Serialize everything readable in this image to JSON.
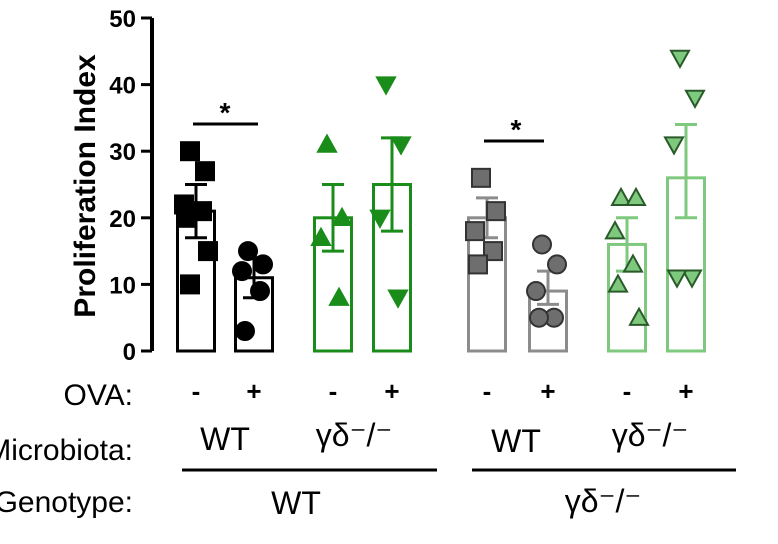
{
  "chart_data": {
    "type": "bar",
    "ylabel": "Proliferation Index",
    "ylim": [
      0,
      50
    ],
    "yticks": [
      "0",
      "10",
      "20",
      "30",
      "40",
      "50"
    ],
    "row_labels": {
      "ova": "OVA:",
      "microbiota": "Microbiota:",
      "genotype": "Genotype:"
    },
    "ova_values": [
      "-",
      "+",
      "-",
      "+",
      "-",
      "+",
      "-",
      "+"
    ],
    "microbiota_values": [
      "WT",
      "γδ⁻/⁻",
      "WT",
      "γδ⁻/⁻"
    ],
    "genotype_values": [
      "WT",
      "γδ⁻/⁻"
    ],
    "significance": [
      "*",
      "*"
    ],
    "bars": [
      {
        "mean": 21,
        "sem_low": 17,
        "sem_high": 25,
        "points": [
          30,
          27,
          22,
          21,
          20,
          15,
          10
        ],
        "marker": "square",
        "color": "#000000",
        "fill": "#000000"
      },
      {
        "mean": 11,
        "sem_low": 8,
        "sem_high": 14,
        "points": [
          15,
          13,
          12,
          9,
          3
        ],
        "marker": "circle",
        "color": "#000000",
        "fill": "#000000"
      },
      {
        "mean": 20,
        "sem_low": 15,
        "sem_high": 25,
        "points": [
          31,
          20,
          17,
          8
        ],
        "marker": "triangle-up",
        "color": "#1a8c1a",
        "fill": "#1a8c1a"
      },
      {
        "mean": 25,
        "sem_low": 18,
        "sem_high": 32,
        "points": [
          40,
          31,
          20,
          8
        ],
        "marker": "triangle-down",
        "color": "#1a8c1a",
        "fill": "#1a8c1a"
      },
      {
        "mean": 20,
        "sem_low": 17,
        "sem_high": 23,
        "points": [
          26,
          21,
          18,
          15,
          13
        ],
        "marker": "square",
        "color": "#8c8c8c",
        "fill": "#6e6e6e"
      },
      {
        "mean": 9,
        "sem_low": 7,
        "sem_high": 12,
        "points": [
          16,
          13,
          9,
          5,
          5
        ],
        "marker": "circle",
        "color": "#8c8c8c",
        "fill": "#6e6e6e"
      },
      {
        "mean": 16,
        "sem_low": 12,
        "sem_high": 20,
        "points": [
          23,
          23,
          18,
          13,
          10,
          5
        ],
        "marker": "triangle-up",
        "color": "#7ec97e",
        "fill": "#7ec97e"
      },
      {
        "mean": 26,
        "sem_low": 20,
        "sem_high": 34,
        "points": [
          44,
          38,
          31,
          11,
          11
        ],
        "marker": "triangle-down",
        "color": "#7ec97e",
        "fill": "#7ec97e"
      }
    ]
  }
}
